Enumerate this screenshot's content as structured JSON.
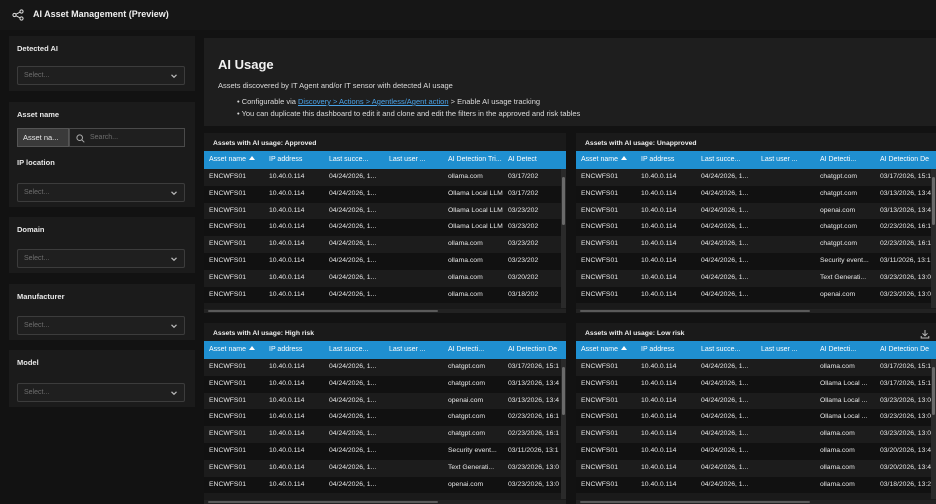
{
  "app": {
    "title": "AI Asset Management (Preview)",
    "share_icon": "share-icon"
  },
  "filters": {
    "detected_ai": {
      "label": "Detected AI",
      "placeholder": "Select..."
    },
    "asset_name": {
      "label": "Asset name",
      "toggle": "Asset na...",
      "placeholder": "Search..."
    },
    "ip_location": {
      "label": "IP location",
      "placeholder": "Select..."
    },
    "domain": {
      "label": "Domain",
      "placeholder": "Select..."
    },
    "manufacturer": {
      "label": "Manufacturer",
      "placeholder": "Select..."
    },
    "model": {
      "label": "Model",
      "placeholder": "Select..."
    }
  },
  "header": {
    "title": "AI Usage",
    "description": "Assets discovered by IT Agent and/or IT sensor with detected AI usage",
    "bullet1_prefix": "• Configurable via ",
    "bullet1_link": "Discovery > Actions > Agentless/Agent action",
    "bullet1_suffix": " > Enable AI usage tracking",
    "bullet2": "• You can duplicate this dashboard to edit it and clone and edit the filters in the approved and risk tables"
  },
  "tables": [
    {
      "title": "Assets with AI usage: Approved",
      "columns": [
        "Asset name",
        "IP address",
        "Last succe...",
        "Last user ...",
        "AI Detection Tri...",
        "AI Detect"
      ],
      "rows": [
        [
          "ENCWFS01",
          "10.40.0.114",
          "04/24/2026, 1...",
          "",
          "ollama.com",
          "03/17/202"
        ],
        [
          "ENCWFS01",
          "10.40.0.114",
          "04/24/2026, 1...",
          "",
          "Ollama Local LLM Se...",
          "03/17/202"
        ],
        [
          "ENCWFS01",
          "10.40.0.114",
          "04/24/2026, 1...",
          "",
          "Ollama Local LLM Se...",
          "03/23/202"
        ],
        [
          "ENCWFS01",
          "10.40.0.114",
          "04/24/2026, 1...",
          "",
          "Ollama Local LLM Se...",
          "03/23/202"
        ],
        [
          "ENCWFS01",
          "10.40.0.114",
          "04/24/2026, 1...",
          "",
          "ollama.com",
          "03/23/202"
        ],
        [
          "ENCWFS01",
          "10.40.0.114",
          "04/24/2026, 1...",
          "",
          "ollama.com",
          "03/23/202"
        ],
        [
          "ENCWFS01",
          "10.40.0.114",
          "04/24/2026, 1...",
          "",
          "ollama.com",
          "03/20/202"
        ],
        [
          "ENCWFS01",
          "10.40.0.114",
          "04/24/2026, 1...",
          "",
          "ollama.com",
          "03/18/202"
        ]
      ]
    },
    {
      "title": "Assets with AI usage: Unapproved",
      "columns": [
        "Asset name",
        "IP address",
        "Last succe...",
        "Last user ...",
        "AI Detecti...",
        "AI Detection De"
      ],
      "rows": [
        [
          "ENCWFS01",
          "10.40.0.114",
          "04/24/2026, 1...",
          "",
          "chatgpt.com",
          "03/17/2026, 15:1"
        ],
        [
          "ENCWFS01",
          "10.40.0.114",
          "04/24/2026, 1...",
          "",
          "chatgpt.com",
          "03/13/2026, 13:4"
        ],
        [
          "ENCWFS01",
          "10.40.0.114",
          "04/24/2026, 1...",
          "",
          "openai.com",
          "03/13/2026, 13:4"
        ],
        [
          "ENCWFS01",
          "10.40.0.114",
          "04/24/2026, 1...",
          "",
          "chatgpt.com",
          "02/23/2026, 16:1"
        ],
        [
          "ENCWFS01",
          "10.40.0.114",
          "04/24/2026, 1...",
          "",
          "chatgpt.com",
          "02/23/2026, 16:1"
        ],
        [
          "ENCWFS01",
          "10.40.0.114",
          "04/24/2026, 1...",
          "",
          "Security event...",
          "03/11/2026, 13:1"
        ],
        [
          "ENCWFS01",
          "10.40.0.114",
          "04/24/2026, 1...",
          "",
          "Text Generati...",
          "03/23/2026, 13:0"
        ],
        [
          "ENCWFS01",
          "10.40.0.114",
          "04/24/2026, 1...",
          "",
          "openai.com",
          "03/23/2026, 13:0"
        ]
      ]
    },
    {
      "title": "Assets with AI usage: High risk",
      "columns": [
        "Asset name",
        "IP address",
        "Last succe...",
        "Last user ...",
        "AI Detecti...",
        "AI Detection De"
      ],
      "rows": [
        [
          "ENCWFS01",
          "10.40.0.114",
          "04/24/2026, 1...",
          "",
          "chatgpt.com",
          "03/17/2026, 15:1"
        ],
        [
          "ENCWFS01",
          "10.40.0.114",
          "04/24/2026, 1...",
          "",
          "chatgpt.com",
          "03/13/2026, 13:4"
        ],
        [
          "ENCWFS01",
          "10.40.0.114",
          "04/24/2026, 1...",
          "",
          "openai.com",
          "03/13/2026, 13:4"
        ],
        [
          "ENCWFS01",
          "10.40.0.114",
          "04/24/2026, 1...",
          "",
          "chatgpt.com",
          "02/23/2026, 16:1"
        ],
        [
          "ENCWFS01",
          "10.40.0.114",
          "04/24/2026, 1...",
          "",
          "chatgpt.com",
          "02/23/2026, 16:1"
        ],
        [
          "ENCWFS01",
          "10.40.0.114",
          "04/24/2026, 1...",
          "",
          "Security event...",
          "03/11/2026, 13:1"
        ],
        [
          "ENCWFS01",
          "10.40.0.114",
          "04/24/2026, 1...",
          "",
          "Text Generati...",
          "03/23/2026, 13:0"
        ],
        [
          "ENCWFS01",
          "10.40.0.114",
          "04/24/2026, 1...",
          "",
          "openai.com",
          "03/23/2026, 13:0"
        ]
      ]
    },
    {
      "title": "Assets with AI usage: Low risk",
      "columns": [
        "Asset name",
        "IP address",
        "Last succe...",
        "Last user ...",
        "AI Detecti...",
        "AI Detection De"
      ],
      "rows": [
        [
          "ENCWFS01",
          "10.40.0.114",
          "04/24/2026, 1...",
          "",
          "ollama.com",
          "03/17/2026, 15:1"
        ],
        [
          "ENCWFS01",
          "10.40.0.114",
          "04/24/2026, 1...",
          "",
          "Ollama Local ...",
          "03/17/2026, 15:1"
        ],
        [
          "ENCWFS01",
          "10.40.0.114",
          "04/24/2026, 1...",
          "",
          "Ollama Local ...",
          "03/23/2026, 13:0"
        ],
        [
          "ENCWFS01",
          "10.40.0.114",
          "04/24/2026, 1...",
          "",
          "Ollama Local ...",
          "03/23/2026, 13:0"
        ],
        [
          "ENCWFS01",
          "10.40.0.114",
          "04/24/2026, 1...",
          "",
          "ollama.com",
          "03/23/2026, 13:0"
        ],
        [
          "ENCWFS01",
          "10.40.0.114",
          "04/24/2026, 1...",
          "",
          "ollama.com",
          "03/20/2026, 13:4"
        ],
        [
          "ENCWFS01",
          "10.40.0.114",
          "04/24/2026, 1...",
          "",
          "ollama.com",
          "03/20/2026, 13:4"
        ],
        [
          "ENCWFS01",
          "10.40.0.114",
          "04/24/2026, 1...",
          "",
          "ollama.com",
          "03/18/2026, 13:2"
        ]
      ]
    }
  ]
}
